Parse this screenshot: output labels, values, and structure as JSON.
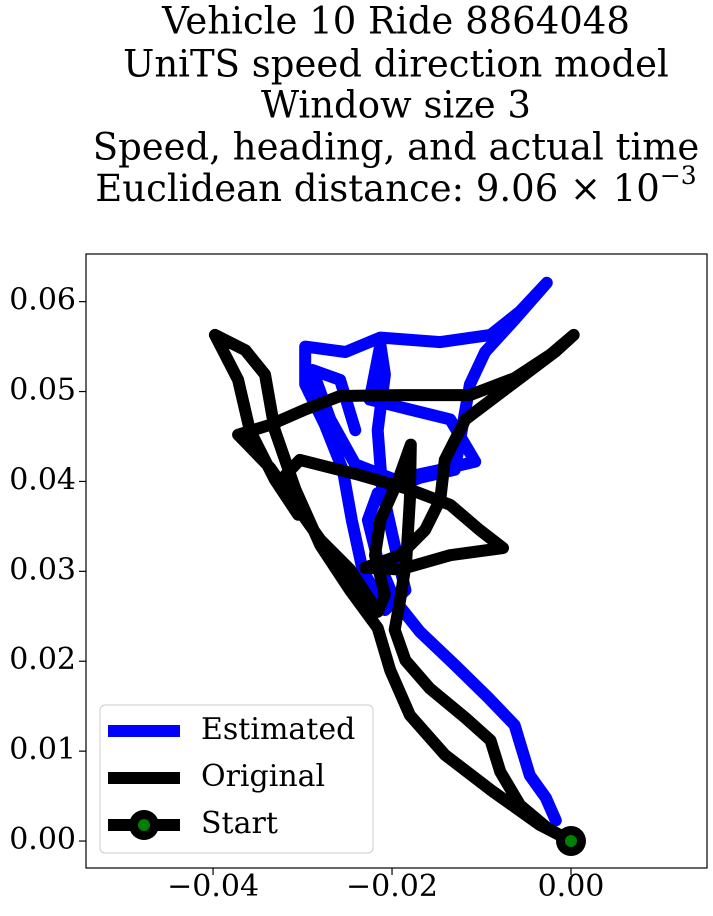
{
  "chart_data": {
    "type": "line",
    "title": [
      "Vehicle 10 Ride 8864048",
      "UniTS speed direction model",
      "Window size 3",
      "Speed, heading, and actual time",
      "Euclidean distance: 9.06 × 10"
    ],
    "title_exponent": "−3",
    "xlim": [
      -0.0542,
      0.0152
    ],
    "ylim": [
      -0.003,
      0.0653
    ],
    "xticks": [
      {
        "value": -0.04,
        "label": "−0.04"
      },
      {
        "value": -0.02,
        "label": "−0.02"
      },
      {
        "value": 0,
        "label": "0.00"
      }
    ],
    "yticks": [
      {
        "value": 0,
        "label": "0.00"
      },
      {
        "value": 0.01,
        "label": "0.01"
      },
      {
        "value": 0.02,
        "label": "0.02"
      },
      {
        "value": 0.03,
        "label": "0.03"
      },
      {
        "value": 0.04,
        "label": "0.04"
      },
      {
        "value": 0.05,
        "label": "0.05"
      },
      {
        "value": 0.06,
        "label": "0.06"
      }
    ],
    "grid": false,
    "legend": "lower left",
    "series": [
      {
        "name": "Estimated",
        "color": "#0000ff",
        "x": [
          -0.0017,
          -0.0028,
          -0.0046,
          -0.0063,
          -0.0093,
          -0.013,
          -0.0169,
          -0.0197,
          -0.0216,
          -0.0227,
          -0.0216,
          -0.0169,
          -0.013,
          -0.0122,
          -0.0113,
          -0.0096,
          -0.0063,
          -0.0027,
          -0.0057,
          -0.009,
          -0.0146,
          -0.0213,
          -0.0252,
          -0.0297,
          -0.0297,
          -0.0275,
          -0.0255,
          -0.0245,
          -0.0233,
          -0.0208,
          -0.0185,
          -0.0197,
          -0.0211,
          -0.0216,
          -0.0208,
          -0.0213,
          -0.0225,
          -0.018,
          -0.0135,
          -0.0107,
          -0.0146,
          -0.0197,
          -0.0241,
          -0.0269,
          -0.0289,
          -0.0258,
          -0.0241
        ],
        "y": [
          0.0023,
          0.0048,
          0.0073,
          0.0129,
          0.016,
          0.0196,
          0.0233,
          0.0268,
          0.0313,
          0.0357,
          0.0387,
          0.0404,
          0.0413,
          0.0457,
          0.0508,
          0.0544,
          0.058,
          0.0621,
          0.0589,
          0.0563,
          0.0555,
          0.056,
          0.0544,
          0.055,
          0.0508,
          0.0463,
          0.0413,
          0.0357,
          0.0302,
          0.0257,
          0.0279,
          0.0329,
          0.0391,
          0.0457,
          0.0519,
          0.0552,
          0.0491,
          0.048,
          0.0469,
          0.0422,
          0.0413,
          0.0402,
          0.0419,
          0.0469,
          0.0524,
          0.0513,
          0.0457
        ]
      },
      {
        "name": "Original",
        "color": "#000000",
        "x": [
          0,
          -0.0026,
          -0.0057,
          -0.0079,
          -0.009,
          -0.0118,
          -0.0158,
          -0.0185,
          -0.0197,
          -0.0191,
          -0.0184,
          -0.018,
          -0.0179,
          -0.0193,
          -0.0213,
          -0.0219,
          -0.0208,
          -0.0216,
          -0.0247,
          -0.028,
          -0.0308,
          -0.0336,
          -0.0372,
          -0.0336,
          -0.0297,
          -0.0258,
          -0.0191,
          -0.0113,
          -0.0063,
          -0.0023,
          0.0003,
          -0.0018,
          -0.0074,
          -0.0118,
          -0.0141,
          -0.0146,
          -0.0163,
          -0.0191,
          -0.023,
          -0.0191,
          -0.0135,
          -0.0076,
          -0.0102,
          -0.0135,
          -0.018,
          -0.0236,
          -0.0303,
          -0.0319,
          -0.0305,
          -0.0331,
          -0.0359,
          -0.0372,
          -0.0398,
          -0.0364,
          -0.0342,
          -0.0331,
          -0.0308,
          -0.028,
          -0.0247,
          -0.0216,
          -0.0202,
          -0.018,
          -0.0141,
          -0.009,
          -0.0035,
          0
        ],
        "y": [
          0,
          0.0014,
          0.004,
          0.0077,
          0.0112,
          0.0137,
          0.017,
          0.0201,
          0.0235,
          0.0268,
          0.0313,
          0.038,
          0.0441,
          0.0402,
          0.0357,
          0.0318,
          0.0274,
          0.0255,
          0.0302,
          0.0335,
          0.0374,
          0.0415,
          0.0452,
          0.0463,
          0.048,
          0.0495,
          0.0496,
          0.0496,
          0.0515,
          0.0541,
          0.0563,
          0.0544,
          0.0502,
          0.0469,
          0.0424,
          0.038,
          0.0346,
          0.0318,
          0.0304,
          0.0302,
          0.0318,
          0.0326,
          0.0346,
          0.0374,
          0.0391,
          0.0407,
          0.0424,
          0.0407,
          0.0363,
          0.0402,
          0.0457,
          0.0513,
          0.0563,
          0.0546,
          0.0519,
          0.0457,
          0.0391,
          0.0329,
          0.0279,
          0.0237,
          0.019,
          0.014,
          0.0096,
          0.0057,
          0.0018,
          0
        ]
      },
      {
        "name": "Start",
        "color": "#000000",
        "marker_color": "#008000",
        "x": [
          0
        ],
        "y": [
          0
        ]
      }
    ]
  }
}
